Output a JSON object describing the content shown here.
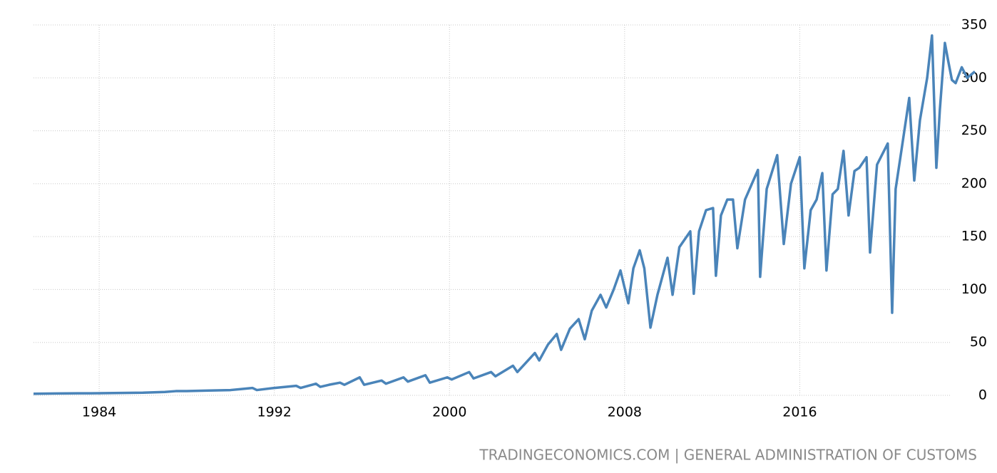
{
  "chart_data": {
    "type": "line",
    "source": "TRADINGECONOMICS.COM | GENERAL ADMINISTRATION OF CUSTOMS",
    "color": "#4a84b9",
    "grid": true,
    "xlim": [
      1981,
      2024
    ],
    "xticks": [
      1984,
      1992,
      2000,
      2008,
      2016
    ],
    "ylim": [
      0,
      350
    ],
    "yticks": [
      0,
      50,
      100,
      150,
      200,
      250,
      300,
      350
    ],
    "x": [
      1981.0,
      1982.0,
      1983.0,
      1984.0,
      1985.0,
      1986.0,
      1987.0,
      1987.5,
      1988.0,
      1989.0,
      1990.0,
      1990.5,
      1991.0,
      1991.2,
      1992.0,
      1992.5,
      1993.0,
      1993.2,
      1993.9,
      1994.1,
      1994.5,
      1995.0,
      1995.2,
      1995.9,
      1996.1,
      1996.9,
      1997.1,
      1997.9,
      1998.1,
      1998.9,
      1999.1,
      1999.9,
      2000.1,
      2000.9,
      2001.1,
      2001.9,
      2002.1,
      2002.9,
      2003.1,
      2003.9,
      2004.1,
      2004.5,
      2004.9,
      2005.1,
      2005.5,
      2005.9,
      2006.18,
      2006.5,
      2006.9,
      2007.16,
      2007.5,
      2007.81,
      2008.17,
      2008.4,
      2008.69,
      2008.9,
      2009.18,
      2009.5,
      2009.96,
      2010.19,
      2010.5,
      2011.0,
      2011.16,
      2011.4,
      2011.72,
      2012.04,
      2012.17,
      2012.4,
      2012.69,
      2012.95,
      2013.15,
      2013.5,
      2014.09,
      2014.19,
      2014.49,
      2014.97,
      2015.27,
      2015.6,
      2016.0,
      2016.21,
      2016.5,
      2016.77,
      2017.03,
      2017.22,
      2017.5,
      2017.74,
      2018.0,
      2018.23,
      2018.5,
      2018.72,
      2019.05,
      2019.21,
      2019.53,
      2020.02,
      2020.22,
      2020.38,
      2020.67,
      2021.0,
      2021.23,
      2021.49,
      2021.82,
      2022.04,
      2022.24,
      2022.4,
      2022.63,
      2022.79,
      2022.95,
      2023.12,
      2023.4,
      2023.65,
      2024.0
    ],
    "values": [
      1.5,
      1.8,
      1.9,
      2.0,
      2.3,
      2.5,
      3.2,
      4,
      4,
      4.5,
      5,
      6,
      7,
      5,
      7,
      8,
      9,
      7,
      11,
      8,
      10,
      12,
      10,
      17,
      10,
      14,
      11,
      17,
      13,
      19,
      12,
      17,
      15,
      22,
      16,
      22,
      18,
      28,
      22,
      40,
      33,
      48,
      58,
      43,
      63,
      72,
      53,
      80,
      95,
      83,
      100,
      118,
      87,
      120,
      137,
      120,
      64,
      95,
      130,
      95,
      140,
      155,
      96,
      155,
      175,
      177,
      113,
      170,
      185,
      185,
      139,
      185,
      213,
      112,
      195,
      227,
      143,
      200,
      225,
      120,
      175,
      185,
      210,
      118,
      190,
      195,
      231,
      170,
      212,
      215,
      225,
      135,
      218,
      238,
      78,
      195,
      235,
      281,
      203,
      260,
      300,
      340,
      215,
      270,
      333,
      315,
      298,
      295,
      310,
      300,
      306
    ]
  }
}
